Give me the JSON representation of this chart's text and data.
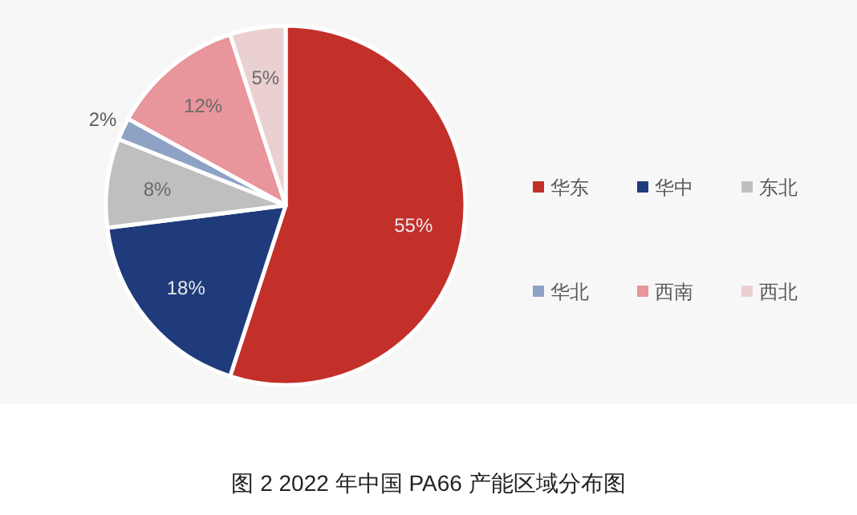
{
  "chart_data": {
    "type": "pie",
    "title": "图 2  2022 年中国 PA66 产能区域分布图",
    "categories": [
      "华东",
      "华中",
      "东北",
      "华北",
      "西南",
      "西北"
    ],
    "values": [
      55,
      18,
      8,
      2,
      12,
      5
    ],
    "colors": [
      "#c3302a",
      "#1f3b7b",
      "#bfbfbf",
      "#8ea2c6",
      "#e8959b",
      "#ebd0d1"
    ],
    "value_labels": [
      "55%",
      "18%",
      "8%",
      "2%",
      "12%",
      "5%"
    ],
    "legend": "right"
  }
}
